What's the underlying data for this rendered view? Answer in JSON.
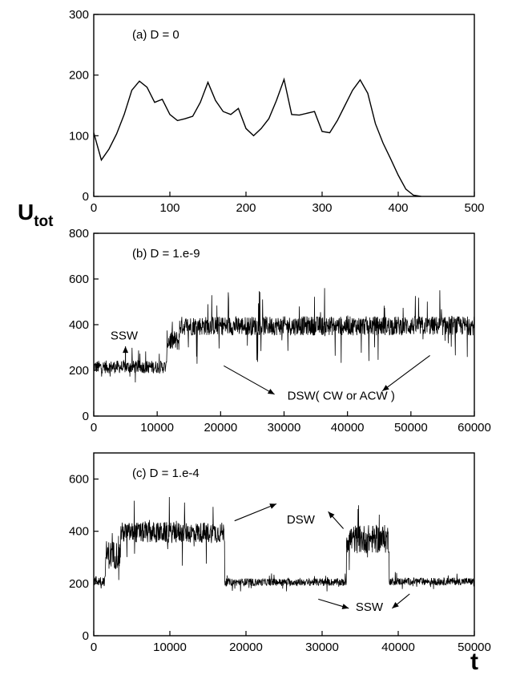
{
  "chart_data": [
    {
      "type": "line",
      "panel_label": "(a) D = 0",
      "xlim": [
        0,
        500
      ],
      "ylim": [
        0,
        300
      ],
      "xticks": [
        0,
        100,
        200,
        300,
        400,
        500
      ],
      "yticks": [
        0,
        100,
        200,
        300
      ],
      "series": [
        {
          "x": [
            0,
            10,
            20,
            30,
            40,
            50,
            60,
            70,
            80,
            90,
            100,
            110,
            120,
            130,
            140,
            150,
            160,
            170,
            180,
            190,
            200,
            210,
            220,
            230,
            240,
            250,
            260,
            270,
            280,
            290,
            300,
            310,
            320,
            330,
            340,
            350,
            360,
            370,
            380,
            390,
            400,
            410,
            420,
            430
          ],
          "y": [
            105,
            60,
            78,
            103,
            135,
            175,
            190,
            180,
            155,
            160,
            135,
            125,
            128,
            132,
            155,
            188,
            158,
            140,
            135,
            145,
            112,
            100,
            112,
            128,
            158,
            193,
            135,
            134,
            137,
            140,
            107,
            105,
            125,
            150,
            175,
            192,
            170,
            120,
            88,
            62,
            35,
            12,
            2,
            0
          ]
        }
      ],
      "annotations": []
    },
    {
      "type": "line",
      "panel_label": "(b) D = 1.e-9",
      "xlim": [
        0,
        60000
      ],
      "ylim": [
        0,
        800
      ],
      "xticks": [
        0,
        10000,
        20000,
        30000,
        40000,
        50000,
        60000
      ],
      "yticks": [
        0,
        200,
        400,
        600,
        800
      ],
      "noise_segments": [
        {
          "x_start": 0,
          "x_end": 11500,
          "mean": 215,
          "amplitude": 28,
          "spike": 85
        },
        {
          "x_start": 11500,
          "x_end": 13500,
          "mean": 330,
          "amplitude": 45,
          "spike": 90
        },
        {
          "x_start": 13500,
          "x_end": 60000,
          "mean": 395,
          "amplitude": 42,
          "spike": 170
        }
      ],
      "annotations": [
        {
          "text": "SSW",
          "x": 4800,
          "y": 335
        },
        {
          "text": "DSW( CW or ACW )",
          "x": 39000,
          "y": 72
        }
      ],
      "arrows": [
        {
          "from": [
            5000,
            225
          ],
          "to": [
            5000,
            305
          ]
        },
        {
          "from": [
            20500,
            220
          ],
          "to": [
            28500,
            95
          ]
        },
        {
          "from": [
            53000,
            265
          ],
          "to": [
            45500,
            110
          ]
        }
      ]
    },
    {
      "type": "line",
      "panel_label": "(c) D = 1.e-4",
      "xlim": [
        0,
        50000
      ],
      "ylim": [
        0,
        700
      ],
      "xticks": [
        0,
        10000,
        20000,
        30000,
        40000,
        50000
      ],
      "yticks": [
        0,
        200,
        400,
        600
      ],
      "noise_segments": [
        {
          "x_start": 0,
          "x_end": 1500,
          "mean": 210,
          "amplitude": 20,
          "spike": 50
        },
        {
          "x_start": 1500,
          "x_end": 3500,
          "mean": 310,
          "amplitude": 55,
          "spike": 100
        },
        {
          "x_start": 3500,
          "x_end": 17200,
          "mean": 395,
          "amplitude": 40,
          "spike": 140
        },
        {
          "x_start": 17200,
          "x_end": 33200,
          "mean": 205,
          "amplitude": 14,
          "spike": 35
        },
        {
          "x_start": 33200,
          "x_end": 38800,
          "mean": 370,
          "amplitude": 55,
          "spike": 130
        },
        {
          "x_start": 38800,
          "x_end": 50000,
          "mean": 208,
          "amplitude": 14,
          "spike": 40
        }
      ],
      "annotations": [
        {
          "text": "DSW",
          "x": 27200,
          "y": 430
        },
        {
          "text": "SSW",
          "x": 36200,
          "y": 95
        }
      ],
      "arrows": [
        {
          "from": [
            18500,
            440
          ],
          "to": [
            24000,
            505
          ]
        },
        {
          "from": [
            32800,
            410
          ],
          "to": [
            30800,
            475
          ]
        },
        {
          "from": [
            29500,
            140
          ],
          "to": [
            33500,
            105
          ]
        },
        {
          "from": [
            41500,
            160
          ],
          "to": [
            39200,
            105
          ]
        }
      ]
    }
  ],
  "y_axis_label": "U",
  "y_axis_label_sub": "tot",
  "x_axis_label": "t"
}
